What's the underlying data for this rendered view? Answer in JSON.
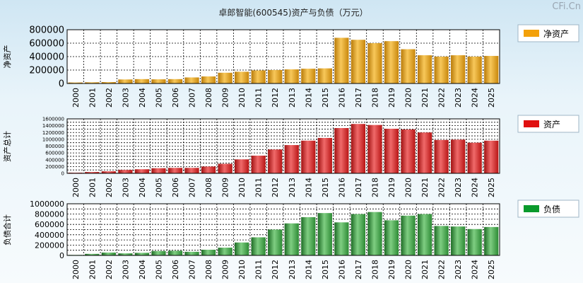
{
  "page": {
    "title": "卓郎智能(600545)资产与负债（万元）",
    "watermark": "CFi.Cn"
  },
  "colors": {
    "net_assets": "#f3a10a",
    "assets": "#e01010",
    "liabilities": "#0a9a2c"
  },
  "chart_data": [
    {
      "type": "bar",
      "title": "卓郎智能(600545)资产与负债（万元）",
      "ylabel": "净资产",
      "legend": "净资产",
      "legend_position": "right",
      "categories": [
        "2000",
        "2001",
        "2002",
        "2003",
        "2004",
        "2005",
        "2006",
        "2007",
        "2008",
        "2009",
        "2010",
        "2011",
        "2012",
        "2013",
        "2014",
        "2015",
        "2016",
        "2017",
        "2018",
        "2019",
        "2020",
        "2021",
        "2022",
        "2023",
        "2024",
        "2025"
      ],
      "values": [
        15000,
        18000,
        21000,
        60000,
        65000,
        62000,
        65000,
        90000,
        105000,
        160000,
        175000,
        195000,
        200000,
        210000,
        220000,
        225000,
        680000,
        650000,
        600000,
        630000,
        510000,
        420000,
        400000,
        420000,
        400000,
        410000
      ],
      "ylim": [
        0,
        800000
      ],
      "yticks": [
        0,
        200000,
        400000,
        600000,
        800000
      ],
      "ytick_labels": [
        "0",
        "200000",
        "400000",
        "600000",
        "800000"
      ],
      "grid": true
    },
    {
      "type": "bar",
      "ylabel": "资产总计",
      "legend": "资产",
      "legend_position": "right",
      "categories": [
        "2000",
        "2001",
        "2002",
        "2003",
        "2004",
        "2005",
        "2006",
        "2007",
        "2008",
        "2009",
        "2010",
        "2011",
        "2012",
        "2013",
        "2014",
        "2015",
        "2016",
        "2017",
        "2018",
        "2019",
        "2020",
        "2021",
        "2022",
        "2023",
        "2024",
        "2025"
      ],
      "values": [
        20000,
        40000,
        60000,
        100000,
        120000,
        150000,
        160000,
        160000,
        200000,
        280000,
        410000,
        520000,
        700000,
        830000,
        960000,
        1040000,
        1330000,
        1450000,
        1420000,
        1310000,
        1290000,
        1200000,
        980000,
        990000,
        900000,
        960000
      ],
      "ylim": [
        0,
        1600000
      ],
      "yticks": [
        0,
        200000,
        400000,
        600000,
        800000,
        1000000,
        1200000,
        1400000,
        1600000
      ],
      "ytick_labels": [
        "0",
        "200000",
        "400000",
        "600000",
        "800000",
        "1000000",
        "1200000",
        "1400000",
        "1600000"
      ],
      "extra_gridlines": [
        100000,
        300000,
        500000,
        700000,
        900000,
        1100000,
        1300000,
        1500000
      ],
      "grid": true
    },
    {
      "type": "bar",
      "ylabel": "负债合计",
      "legend": "负债",
      "legend_position": "right",
      "categories": [
        "2000",
        "2001",
        "2002",
        "2003",
        "2004",
        "2005",
        "2006",
        "2007",
        "2008",
        "2009",
        "2010",
        "2011",
        "2012",
        "2013",
        "2014",
        "2015",
        "2016",
        "2017",
        "2018",
        "2019",
        "2020",
        "2021",
        "2022",
        "2023",
        "2024",
        "2025"
      ],
      "values": [
        10000,
        30000,
        55000,
        40000,
        50000,
        85000,
        90000,
        70000,
        110000,
        150000,
        250000,
        350000,
        500000,
        620000,
        740000,
        820000,
        640000,
        800000,
        840000,
        680000,
        770000,
        800000,
        570000,
        560000,
        510000,
        550000
      ],
      "ylim": [
        0,
        1000000
      ],
      "yticks": [
        0,
        200000,
        400000,
        600000,
        800000,
        1000000
      ],
      "ytick_labels": [
        "0",
        "200000",
        "400000",
        "600000",
        "800000",
        "1000000"
      ],
      "extra_gridlines": [
        100000,
        300000,
        500000,
        700000,
        900000
      ],
      "grid": true
    }
  ]
}
